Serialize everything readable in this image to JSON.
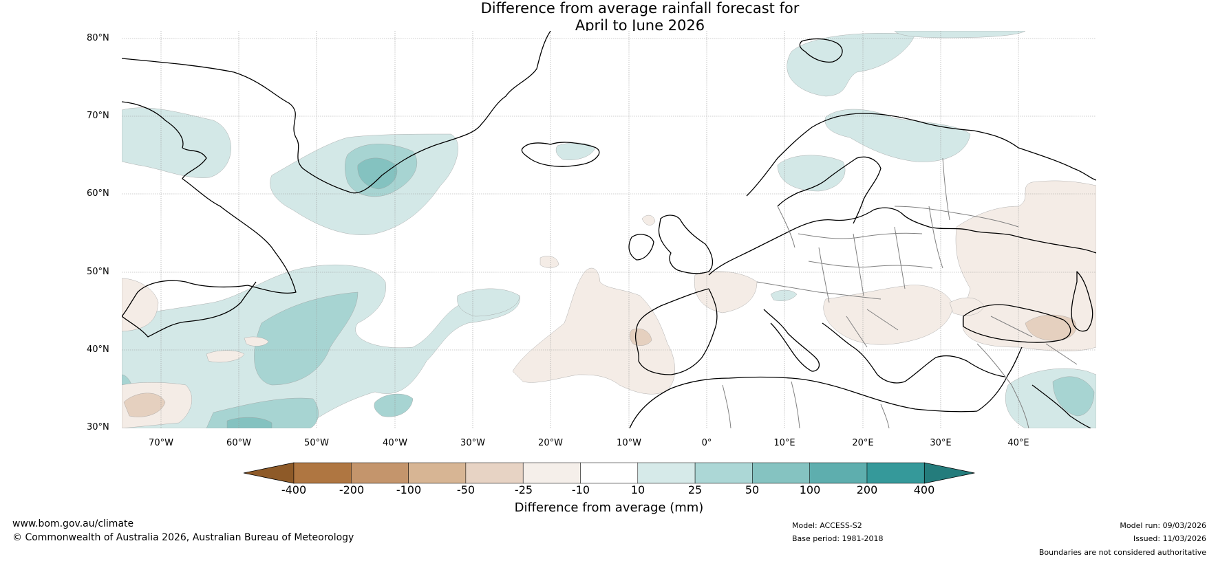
{
  "title": {
    "line1": "Difference from average rainfall forecast for",
    "line2": "April to June 2026"
  },
  "map": {
    "latitudes": [
      "80°N",
      "70°N",
      "60°N",
      "50°N",
      "40°N",
      "30°N"
    ],
    "longitudes": [
      "70°W",
      "60°W",
      "50°W",
      "40°W",
      "30°W",
      "20°W",
      "10°W",
      "0°",
      "10°E",
      "20°E",
      "30°E",
      "40°E"
    ],
    "colors": {
      "wet1": "#d3e8e7",
      "wet2": "#a7d4d2",
      "wet3": "#84c2c0",
      "dry1": "#f4ece6",
      "dry2": "#e5d0bf",
      "dry3": "#d3b291"
    }
  },
  "colorbar": {
    "title": "Difference from average (mm)",
    "ticks": [
      "-400",
      "-200",
      "-100",
      "-50",
      "-25",
      "-10",
      "10",
      "25",
      "50",
      "100",
      "200",
      "400"
    ],
    "colors": [
      "#8e5a28",
      "#af7641",
      "#c4956c",
      "#d7b594",
      "#e7d3c4",
      "#f5efea",
      "#ffffff",
      "#d6eae9",
      "#acd7d6",
      "#85c3c1",
      "#5eaeae",
      "#35999a",
      "#247c7c"
    ]
  },
  "footer": {
    "website": "www.bom.gov.au/climate",
    "copyright": "© Commonwealth of Australia 2026, Australian Bureau of Meteorology",
    "model": "Model: ACCESS-S2",
    "base_period": "Base period: 1981-2018",
    "model_run": "Model run: 09/03/2026",
    "issued": "Issued: 11/03/2026",
    "disclaimer": "Boundaries are not considered authoritative"
  }
}
